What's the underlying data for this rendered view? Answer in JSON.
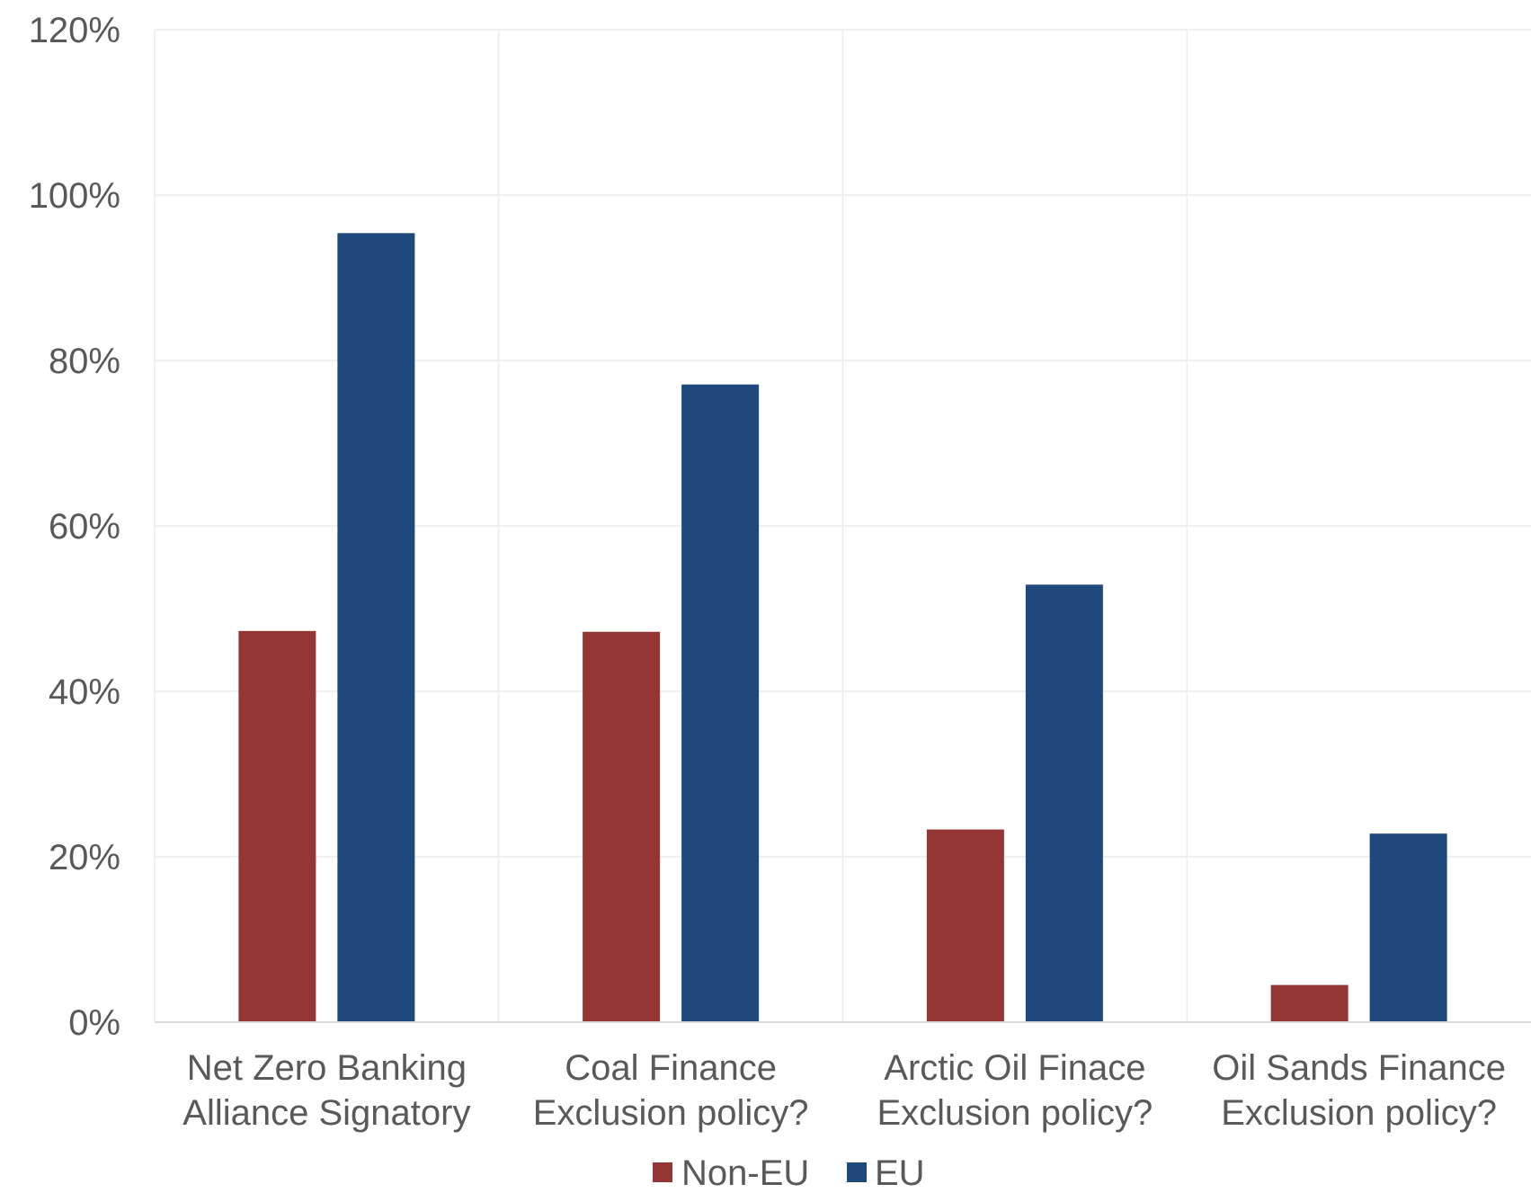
{
  "chart_data": {
    "type": "bar",
    "title": "",
    "xlabel": "",
    "ylabel": "",
    "categories": [
      [
        "Net Zero Banking",
        "Alliance Signatory"
      ],
      [
        "Coal Finance",
        "Exclusion policy?"
      ],
      [
        "Arctic Oil Finace",
        "Exclusion policy?"
      ],
      [
        "Oil Sands Finance",
        "Exclusion policy?"
      ]
    ],
    "series": [
      {
        "name": "Non-EU",
        "color": "#943634",
        "values": [
          0.473,
          0.472,
          0.233,
          0.045
        ]
      },
      {
        "name": "EU",
        "color": "#1F497D",
        "values": [
          0.954,
          0.771,
          0.529,
          0.228
        ]
      }
    ],
    "ylim": [
      0,
      1.2
    ],
    "yticks": [
      {
        "value": 0,
        "label": "0%"
      },
      {
        "value": 0.2,
        "label": "20%"
      },
      {
        "value": 0.4,
        "label": "40%"
      },
      {
        "value": 0.6,
        "label": "60%"
      },
      {
        "value": 0.8,
        "label": "80%"
      },
      {
        "value": 1.0,
        "label": "100%"
      },
      {
        "value": 1.2,
        "label": "120%"
      }
    ],
    "grid": true,
    "legend_position": "bottom-center"
  }
}
